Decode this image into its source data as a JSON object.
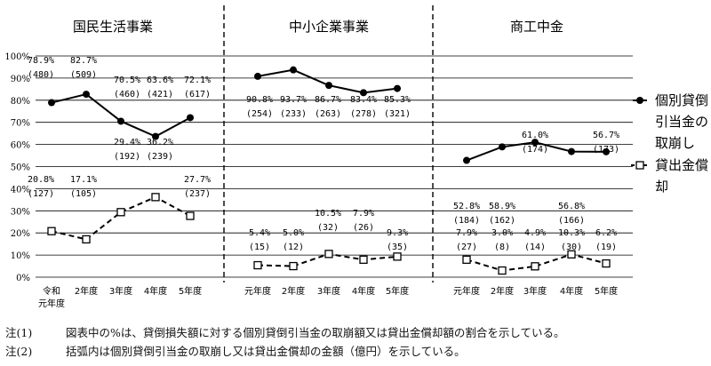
{
  "chart_data": {
    "type": "line",
    "y_axis": {
      "ticks": [
        "0%",
        "10%",
        "20%",
        "30%",
        "40%",
        "50%",
        "60%",
        "70%",
        "80%",
        "90%",
        "100%"
      ],
      "ylim": [
        0,
        100
      ]
    },
    "legend": {
      "placement": "right",
      "entries": [
        "個別貸倒引当金の取崩し",
        "貸出金償却"
      ]
    },
    "panels": [
      {
        "title": "国民生活事業",
        "categories": [
          "令和\n元年度",
          "2年度",
          "3年度",
          "4年度",
          "5年度"
        ],
        "series": [
          {
            "name": "個別貸倒引当金の取崩し",
            "marker": "filled-circle",
            "line": "solid",
            "values": [
              78.9,
              82.7,
              70.5,
              63.6,
              72.1
            ],
            "labels": [
              "78.9%",
              "82.7%",
              "70.5%",
              "63.6%",
              "72.1%"
            ],
            "amounts": [
              "(480)",
              "(509)",
              "(460)",
              "(421)",
              "(617)"
            ]
          },
          {
            "name": "貸出金償却",
            "marker": "open-square",
            "line": "dashed",
            "values": [
              20.8,
              17.1,
              29.4,
              36.2,
              27.7
            ],
            "labels": [
              "20.8%",
              "17.1%",
              "29.4%",
              "36.2%",
              "27.7%"
            ],
            "amounts": [
              "(127)",
              "(105)",
              "(192)",
              "(239)",
              "(237)"
            ]
          }
        ]
      },
      {
        "title": "中小企業事業",
        "categories": [
          "元年度",
          "2年度",
          "3年度",
          "4年度",
          "5年度"
        ],
        "series": [
          {
            "name": "個別貸倒引当金の取崩し",
            "marker": "filled-circle",
            "line": "solid",
            "values": [
              90.8,
              93.7,
              86.7,
              83.4,
              85.3
            ],
            "labels": [
              "90.8%",
              "93.7%",
              "86.7%",
              "83.4%",
              "85.3%"
            ],
            "amounts": [
              "(254)",
              "(233)",
              "(263)",
              "(278)",
              "(321)"
            ]
          },
          {
            "name": "貸出金償却",
            "marker": "open-square",
            "line": "dashed",
            "values": [
              5.4,
              5.0,
              10.5,
              7.9,
              9.3
            ],
            "labels": [
              "5.4%",
              "5.0%",
              "10.5%",
              "7.9%",
              "9.3%"
            ],
            "amounts": [
              "(15)",
              "(12)",
              "(32)",
              "(26)",
              "(35)"
            ]
          }
        ]
      },
      {
        "title": "商工中金",
        "categories": [
          "元年度",
          "2年度",
          "3年度",
          "4年度",
          "5年度"
        ],
        "series": [
          {
            "name": "個別貸倒引当金の取崩し",
            "marker": "filled-circle",
            "line": "solid",
            "values": [
              52.8,
              58.9,
              61.0,
              56.8,
              56.7
            ],
            "labels": [
              "52.8%",
              "58.9%",
              "61.0%",
              "56.8%",
              "56.7%"
            ],
            "amounts": [
              "(184)",
              "(162)",
              "(174)",
              "(166)",
              "(173)"
            ]
          },
          {
            "name": "貸出金償却",
            "marker": "open-square",
            "line": "dashed",
            "values": [
              7.9,
              3.0,
              4.9,
              10.3,
              6.2
            ],
            "labels": [
              "7.9%",
              "3.0%",
              "4.9%",
              "10.3%",
              "6.2%"
            ],
            "amounts": [
              "(27)",
              "(8)",
              "(14)",
              "(30)",
              "(19)"
            ]
          }
        ]
      }
    ]
  },
  "notes": [
    {
      "prefix": "注(1)",
      "text": "図表中の%は、貸倒損失額に対する個別貸倒引当金の取崩額又は貸出金償却額の割合を示している。"
    },
    {
      "prefix": "注(2)",
      "text": "括弧内は個別貸倒引当金の取崩し又は貸出金償却の金額（億円）を示している。"
    }
  ]
}
